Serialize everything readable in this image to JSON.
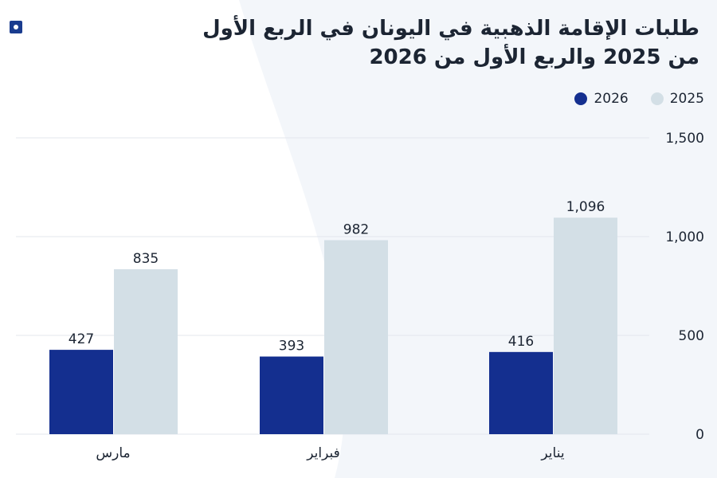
{
  "title": "طلبات الإقامة الذهبية في اليونان في الربع الأول من 2025 والربع الأول من 2026",
  "colors": {
    "series_2026": "#142f8f",
    "series_2025": "#d3dfe6",
    "grid": "#e3e7ee",
    "text": "#1c2533",
    "logo": "#1a3c8f"
  },
  "chart_data": {
    "type": "bar",
    "title": "طلبات الإقامة الذهبية في اليونان في الربع الأول من 2025 والربع الأول من 2026",
    "categories": [
      "مارس",
      "فبراير",
      "يناير"
    ],
    "series": [
      {
        "name": "2026",
        "values": [
          427,
          393,
          416
        ]
      },
      {
        "name": "2025",
        "values": [
          835,
          982,
          1096
        ]
      }
    ],
    "data_labels": {
      "2026": [
        "427",
        "393",
        "416"
      ],
      "2025": [
        "835",
        "982",
        "1,096"
      ]
    },
    "ylim": [
      0,
      1500
    ],
    "yticks": [
      0,
      500,
      1000,
      1500
    ],
    "ytick_labels": [
      "0",
      "500",
      "1,000",
      "1,500"
    ],
    "y_axis_side": "right",
    "grid": true,
    "legend": [
      {
        "label": "2026"
      },
      {
        "label": "2025"
      }
    ],
    "legend_placement": "top-right",
    "xlabel": "",
    "ylabel": ""
  }
}
